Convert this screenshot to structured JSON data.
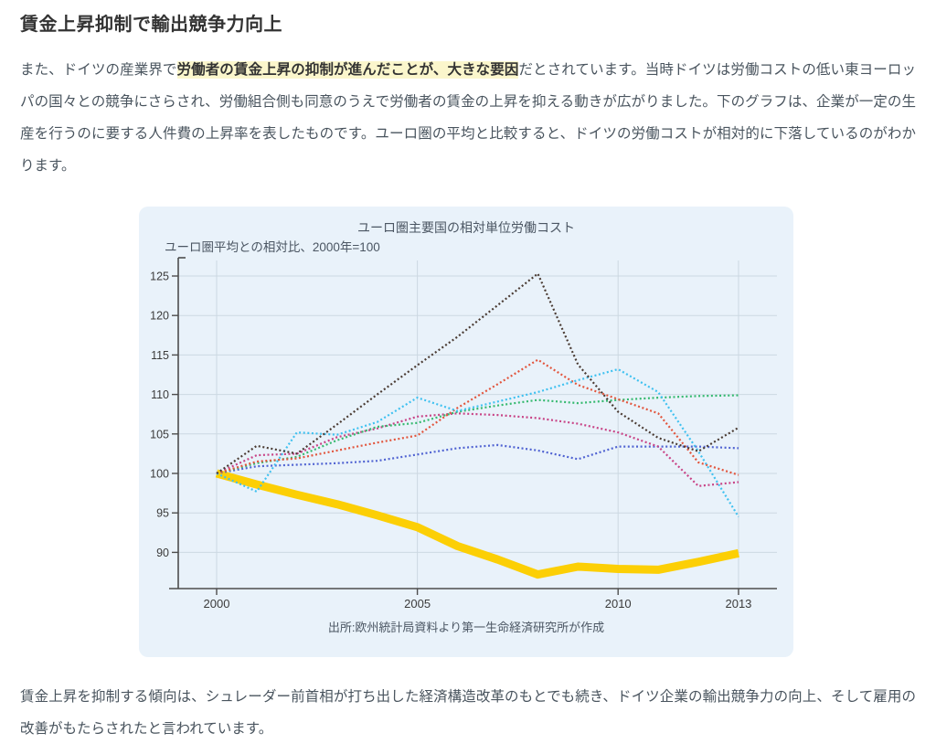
{
  "article": {
    "title": "賃金上昇抑制で輸出競争力向上",
    "para1_prefix": "また、ドイツの産業界で",
    "para1_highlight": "労働者の賃金上昇の抑制が進んだことが、大きな要因",
    "para1_suffix": "だとされています。当時ドイツは労働コストの低い東ヨーロッパの国々との競争にさらされ、労働組合側も同意のうえで労働者の賃金の上昇を抑える動きが広がりました。下のグラフは、企業が一定の生産を行うのに要する人件費の上昇率を表したものです。ユーロ圏の平均と比較すると、ドイツの労働コストが相対的に下落しているのがわかります。",
    "para2": "賃金上昇を抑制する傾向は、シュレーダー前首相が打ち出した経済構造改革のもとでも続き、ドイツ企業の輸出競争力の向上、そして雇用の改善がもたらされたと言われています。"
  },
  "chart": {
    "title": "ユーロ圏主要国の相対単位労働コスト",
    "subtitle": "ユーロ圏平均との相対比、2000年=100",
    "source": "出所:欧州統計局資料より第一生命経済研究所が作成",
    "panel_bg": "#e9f2fa",
    "grid_color": "#ccd8e2",
    "axis_color": "#4d4d4d",
    "tick_label_color": "#3b3b3b"
  },
  "chart_data": {
    "type": "line",
    "x": [
      2000,
      2001,
      2002,
      2003,
      2004,
      2005,
      2006,
      2007,
      2008,
      2009,
      2010,
      2011,
      2012,
      2013
    ],
    "xticks": [
      2000,
      2005,
      2010,
      2013
    ],
    "yticks": [
      90,
      95,
      100,
      105,
      110,
      115,
      120,
      125
    ],
    "ylim": [
      86.3,
      127.3
    ],
    "grid": true,
    "legend": "none",
    "series": [
      {
        "name": "yellow-thick-line-germany",
        "color": "#fccf05",
        "style": "solid",
        "width": 9,
        "values": [
          100,
          98.6,
          97.3,
          96.1,
          94.7,
          93.2,
          90.8,
          89.1,
          87.2,
          88.2,
          87.9,
          87.8,
          88.8,
          89.9
        ]
      },
      {
        "name": "blue-dotted-line",
        "color": "#5063d2",
        "style": "dotted",
        "width": 2.2,
        "values": [
          100,
          100.9,
          101.1,
          101.3,
          101.6,
          102.4,
          103.2,
          103.6,
          102.9,
          101.8,
          103.4,
          103.4,
          103.4,
          103.2
        ]
      },
      {
        "name": "magenta-dotted-line",
        "color": "#c84386",
        "style": "dotted",
        "width": 2.2,
        "values": [
          100,
          102.3,
          102.5,
          104.6,
          105.7,
          107.2,
          107.6,
          107.4,
          107.0,
          106.3,
          105.2,
          103.4,
          98.4,
          98.9
        ]
      },
      {
        "name": "green-dotted-line",
        "color": "#35b96f",
        "style": "dotted",
        "width": 2.2,
        "values": [
          100,
          101.3,
          102.1,
          104.2,
          105.9,
          106.4,
          107.8,
          108.6,
          109.3,
          108.9,
          109.3,
          109.6,
          109.8,
          109.9
        ]
      },
      {
        "name": "red-dotted-line",
        "color": "#e2553d",
        "style": "dotted",
        "width": 2.2,
        "values": [
          100,
          101.5,
          101.9,
          102.9,
          103.9,
          104.8,
          108.3,
          111.3,
          114.4,
          111.2,
          109.4,
          107.6,
          101.4,
          99.8
        ]
      },
      {
        "name": "cyan-dotted-line",
        "color": "#3fc1f0",
        "style": "dotted",
        "width": 2.2,
        "values": [
          100,
          97.7,
          105.2,
          104.9,
          106.5,
          109.6,
          107.9,
          109.1,
          110.3,
          111.8,
          113.2,
          110.3,
          102.8,
          94.5
        ]
      },
      {
        "name": "black-dotted-line",
        "color": "#4a3b33",
        "style": "dotted",
        "width": 2.2,
        "values": [
          100,
          103.5,
          102.5,
          106.2,
          110.0,
          113.7,
          117.3,
          121.3,
          125.3,
          113.8,
          107.8,
          104.5,
          102.8,
          105.8
        ]
      }
    ]
  }
}
